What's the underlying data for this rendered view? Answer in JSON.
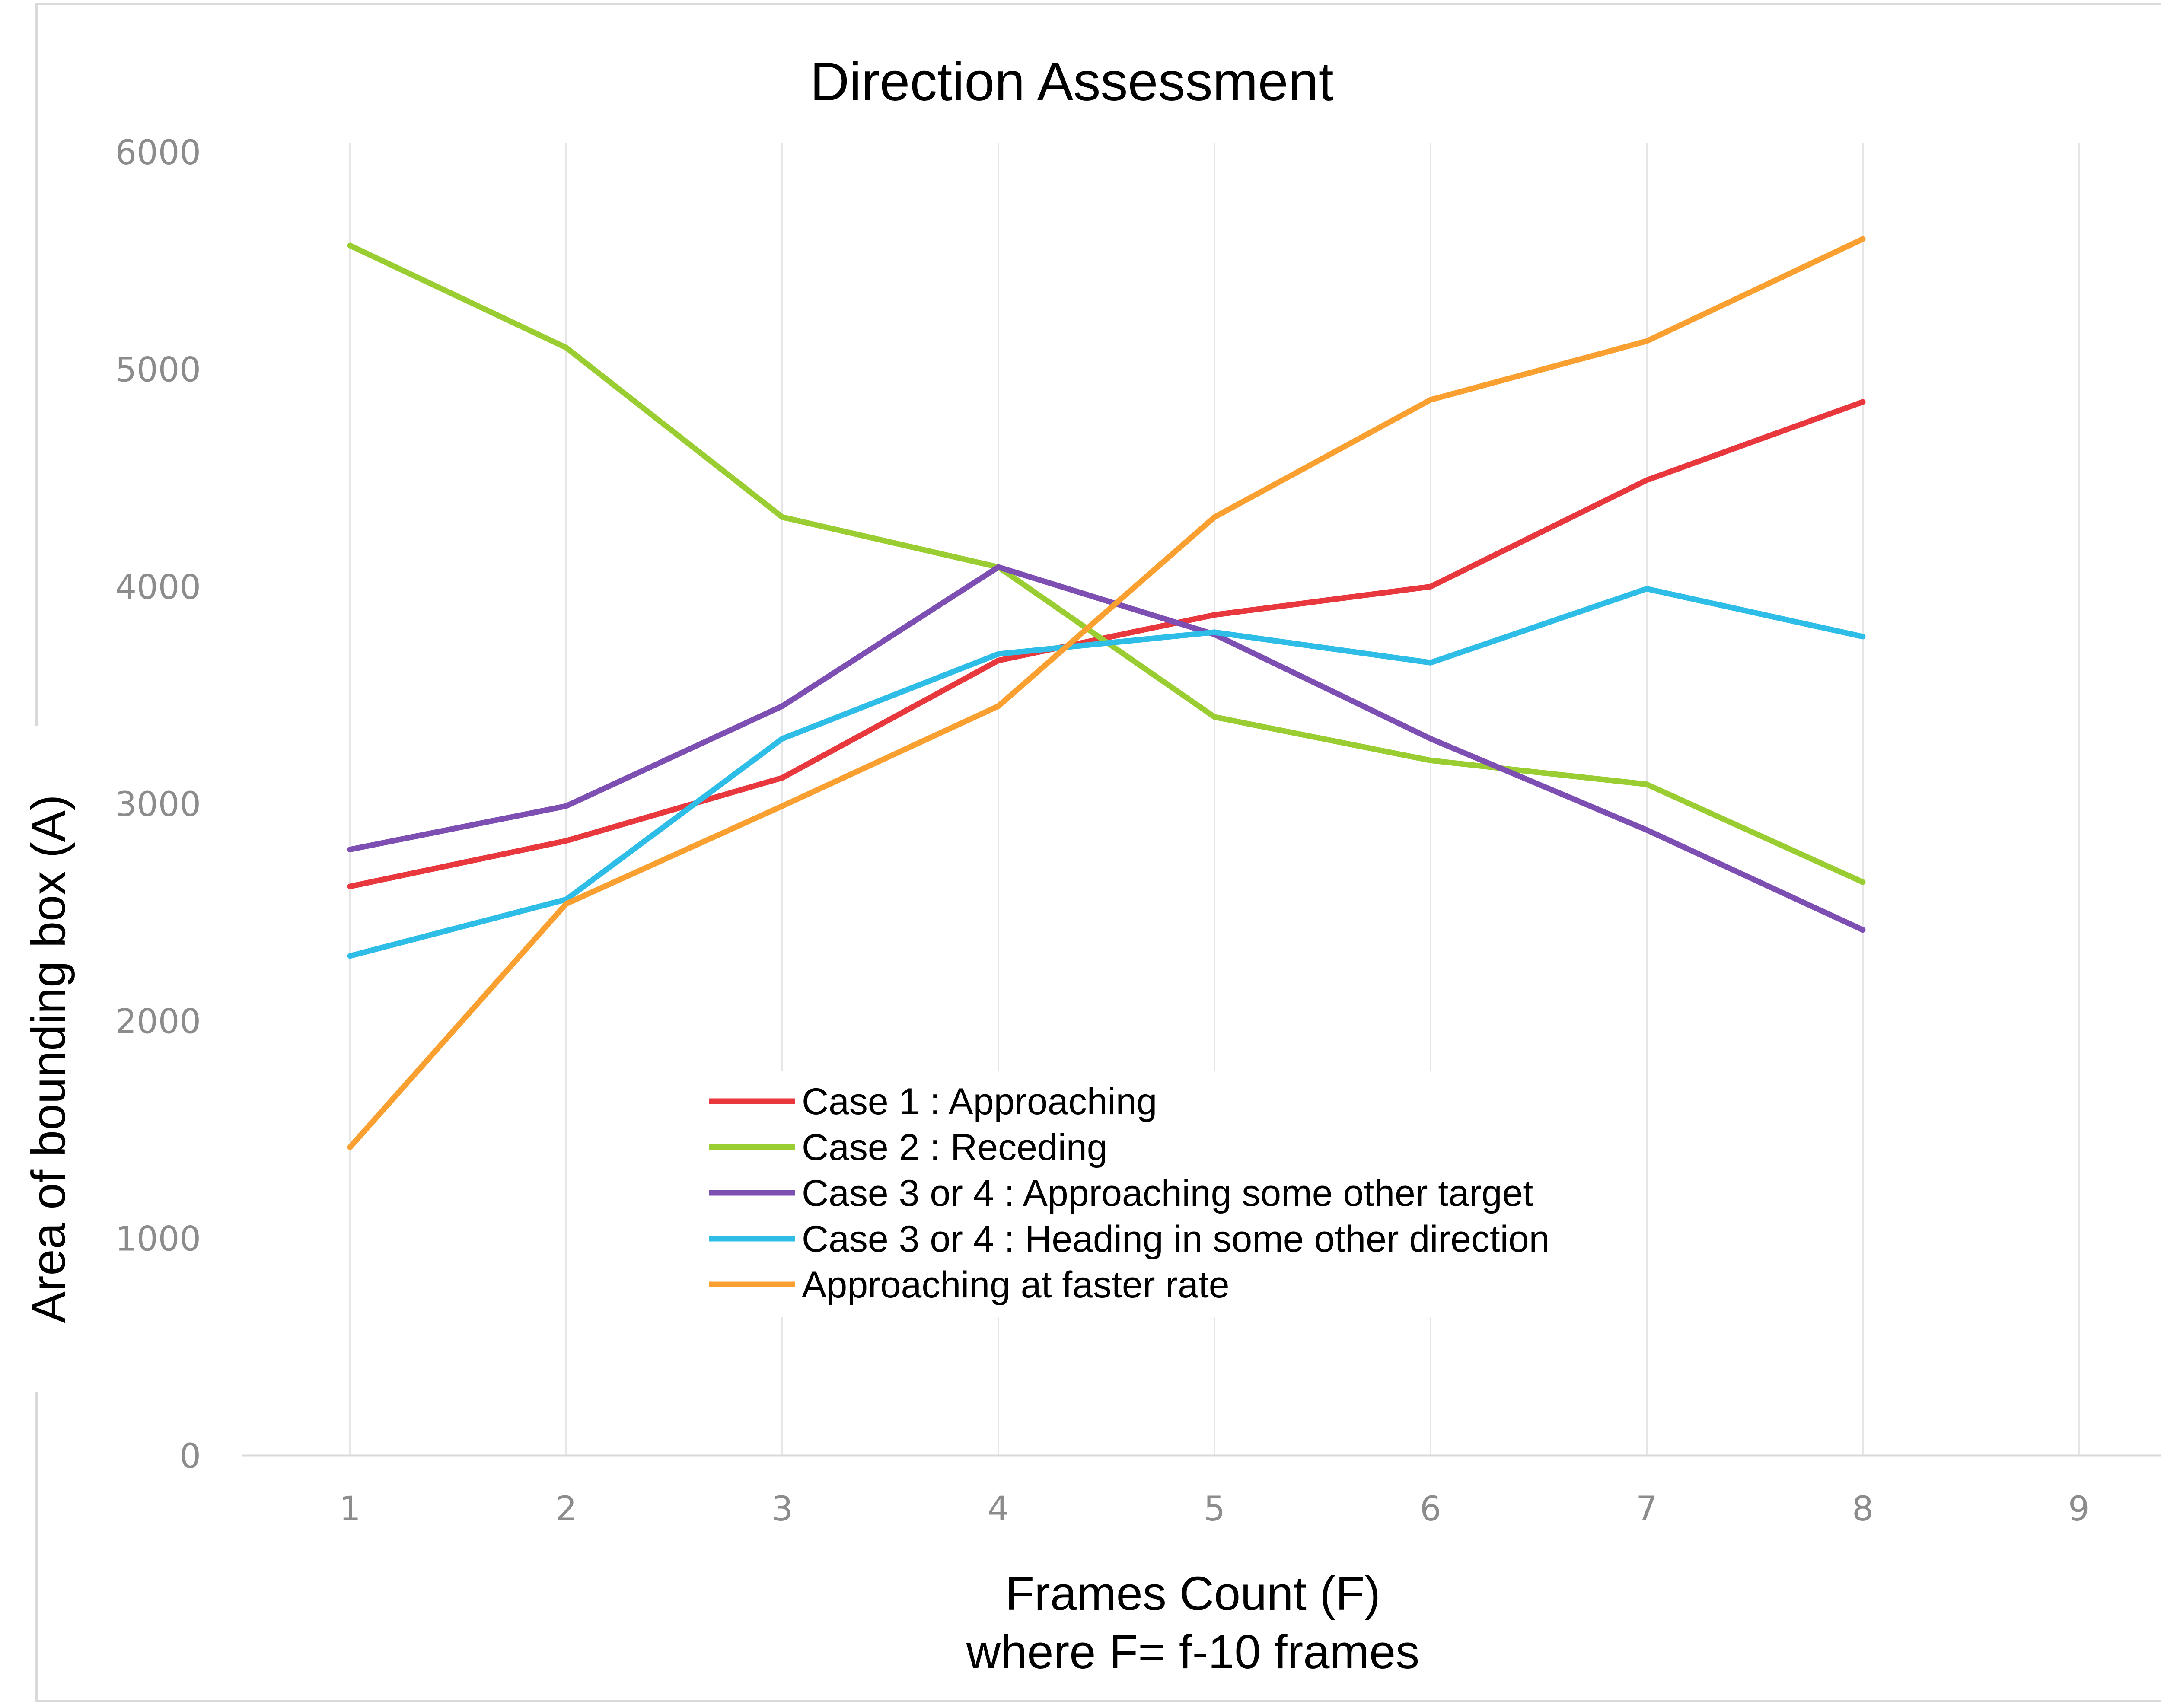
{
  "chart_data": {
    "type": "line",
    "title": "Direction Assessment",
    "xlabel": "Frames Count (F)",
    "xlabel_line2": "where F= f-10 frames",
    "ylabel": "Area of bounding box (A)",
    "x": [
      1,
      2,
      3,
      4,
      5,
      6,
      7,
      8
    ],
    "x_ticks": [
      "1",
      "2",
      "3",
      "4",
      "5",
      "6",
      "7",
      "8",
      "9"
    ],
    "y_ticks": [
      "0",
      "1000",
      "2000",
      "3000",
      "4000",
      "5000",
      "6000"
    ],
    "xlim": [
      0.5,
      9.5
    ],
    "ylim": [
      0,
      6000
    ],
    "grid": "vertical",
    "legend_position": "center-bottom",
    "series": [
      {
        "name": "Case 1 : Approaching",
        "color": "#e8383d",
        "values": [
          2620,
          2830,
          3120,
          3660,
          3870,
          4000,
          4490,
          4850
        ]
      },
      {
        "name": "Case 2 : Receding",
        "color": "#9acd32",
        "values": [
          5570,
          5100,
          4320,
          4090,
          3400,
          3200,
          3090,
          2640
        ]
      },
      {
        "name": "Case 3 or 4 : Approaching some other target",
        "color": "#7e4fb3",
        "values": [
          2790,
          2990,
          3450,
          4090,
          3780,
          3300,
          2880,
          2420
        ]
      },
      {
        "name": "Case 3 or 4 : Heading in some other direction",
        "color": "#2ebde6",
        "values": [
          2300,
          2560,
          3300,
          3690,
          3790,
          3650,
          3990,
          3770
        ]
      },
      {
        "name": "Approaching at faster rate",
        "color": "#f9a030",
        "values": [
          1420,
          2540,
          2990,
          3450,
          4320,
          4860,
          5130,
          5600
        ]
      }
    ]
  }
}
